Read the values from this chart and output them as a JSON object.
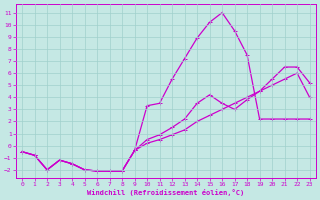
{
  "xlabel": "Windchill (Refroidissement éolien,°C)",
  "background_color": "#c5e8e4",
  "grid_color": "#a0d0cc",
  "line_color": "#cc00cc",
  "x_ticks": [
    0,
    1,
    2,
    3,
    4,
    5,
    6,
    7,
    8,
    9,
    10,
    11,
    12,
    13,
    14,
    15,
    16,
    17,
    18,
    19,
    20,
    21,
    22,
    23
  ],
  "y_ticks": [
    -2,
    -1,
    0,
    1,
    2,
    3,
    4,
    5,
    6,
    7,
    8,
    9,
    10,
    11
  ],
  "ylim": [
    -2.7,
    11.7
  ],
  "xlim": [
    -0.5,
    23.5
  ],
  "line1_x": [
    0,
    1,
    2,
    3,
    4,
    5,
    6,
    7,
    8,
    9,
    10,
    11,
    12,
    13,
    14,
    15,
    16,
    17,
    18,
    19,
    20,
    21,
    22,
    23
  ],
  "line1_y": [
    -0.5,
    -0.8,
    -2.0,
    -1.2,
    -1.5,
    -2.0,
    -2.1,
    -2.1,
    -2.1,
    -0.4,
    3.3,
    3.5,
    5.5,
    7.2,
    8.9,
    10.2,
    11.0,
    9.5,
    7.5,
    2.2,
    2.2,
    2.2,
    2.2,
    2.2
  ],
  "line2_x": [
    0,
    1,
    2,
    3,
    4,
    5,
    6,
    7,
    8,
    9,
    10,
    11,
    12,
    13,
    14,
    15,
    16,
    17,
    18,
    19,
    20,
    21,
    22,
    23
  ],
  "line2_y": [
    -0.5,
    -0.8,
    -2.0,
    -1.2,
    -1.5,
    -2.0,
    -2.1,
    -2.1,
    -2.1,
    -0.4,
    0.5,
    0.9,
    1.5,
    2.2,
    3.5,
    4.2,
    3.5,
    3.0,
    3.8,
    4.5,
    5.5,
    6.5,
    6.5,
    5.2
  ],
  "line3_x": [
    0,
    1,
    2,
    3,
    4,
    5,
    6,
    7,
    8,
    9,
    10,
    11,
    12,
    13,
    14,
    15,
    16,
    17,
    18,
    19,
    20,
    21,
    22,
    23
  ],
  "line3_y": [
    -0.5,
    -0.8,
    -2.0,
    -1.2,
    -1.5,
    -2.0,
    -2.1,
    -2.1,
    -2.1,
    -0.4,
    0.2,
    0.5,
    0.9,
    1.3,
    2.0,
    2.5,
    3.0,
    3.5,
    4.0,
    4.5,
    5.0,
    5.5,
    6.0,
    4.0
  ]
}
